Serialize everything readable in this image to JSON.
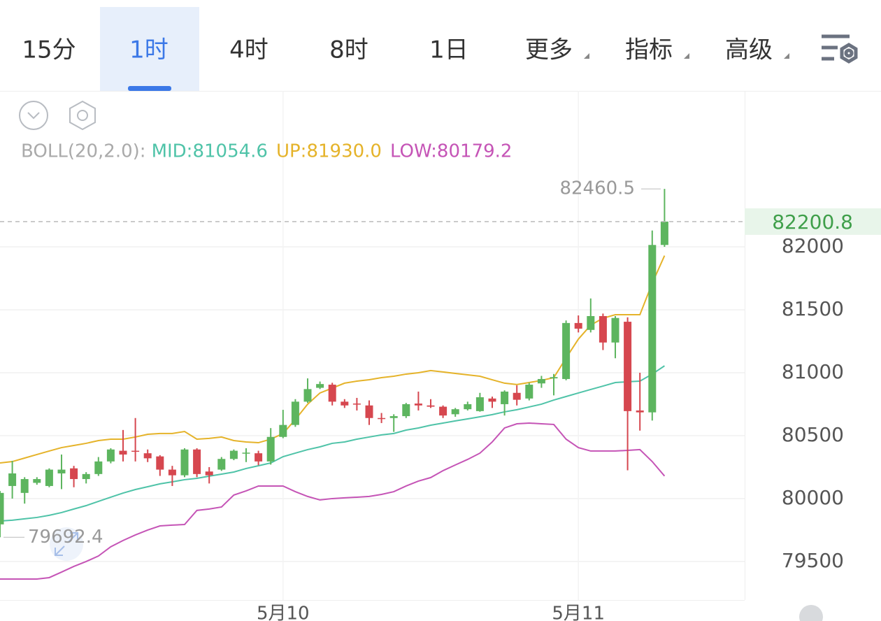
{
  "tabs": {
    "items": [
      {
        "label": "15分"
      },
      {
        "label": "1时"
      },
      {
        "label": "4时"
      },
      {
        "label": "8时"
      },
      {
        "label": "1日"
      },
      {
        "label": "更多",
        "menu": true
      },
      {
        "label": "指标",
        "menu": true
      },
      {
        "label": "高级",
        "menu": true
      }
    ],
    "active": 1
  },
  "chart_data": {
    "type": "candlestick",
    "indicator_label": "BOLL(20,2.0):",
    "categories": [
      null,
      null,
      null,
      null,
      null,
      null,
      null,
      null,
      null,
      null,
      null,
      null,
      null,
      null,
      null,
      null,
      null,
      null,
      null,
      null,
      null,
      null,
      null,
      "5月10",
      null,
      null,
      null,
      null,
      null,
      null,
      null,
      null,
      null,
      null,
      null,
      null,
      null,
      null,
      null,
      null,
      null,
      null,
      null,
      null,
      null,
      null,
      null,
      "5月11",
      null,
      null,
      null,
      null,
      null,
      null,
      null
    ],
    "up_color": "#5db55f",
    "down_color": "#d6474f",
    "open": [
      79795,
      80100,
      80045,
      80125,
      80100,
      80200,
      80240,
      80155,
      80195,
      80295,
      80380,
      80380,
      80360,
      80335,
      80230,
      80185,
      80390,
      80215,
      80230,
      80315,
      80360,
      80360,
      80295,
      80490,
      80585,
      80770,
      80880,
      80905,
      80770,
      80755,
      80740,
      80640,
      80640,
      80655,
      80755,
      80740,
      80730,
      80670,
      80710,
      80695,
      80795,
      80750,
      80840,
      80795,
      80915,
      80955,
      80950,
      81395,
      81340,
      81450,
      81240,
      81405,
      80700,
      80685,
      82015
    ],
    "high": [
      80060,
      80300,
      80170,
      80170,
      80240,
      80350,
      80260,
      80210,
      80330,
      80400,
      80545,
      80640,
      80390,
      80345,
      80260,
      80400,
      80400,
      80250,
      80330,
      80390,
      80400,
      80380,
      80560,
      80705,
      80790,
      80955,
      80930,
      80920,
      80790,
      80800,
      80780,
      80680,
      80670,
      80760,
      80850,
      80790,
      80740,
      80720,
      80770,
      80840,
      80810,
      80860,
      80900,
      80920,
      80975,
      80990,
      81415,
      81455,
      81590,
      81470,
      81450,
      81440,
      81000,
      82130,
      82460.5
    ],
    "low": [
      79692.4,
      80000,
      79960,
      80110,
      80090,
      80075,
      80090,
      80120,
      80180,
      80280,
      80295,
      80295,
      80290,
      80180,
      80100,
      80170,
      80170,
      80120,
      80220,
      80305,
      80290,
      80265,
      80270,
      80480,
      80570,
      80760,
      80870,
      80740,
      80720,
      80700,
      80585,
      80600,
      80530,
      80640,
      80700,
      80720,
      80640,
      80650,
      80700,
      80690,
      80720,
      80660,
      80740,
      80780,
      80880,
      80820,
      80940,
      81320,
      81320,
      81180,
      81115,
      80225,
      80540,
      80620,
      82000
    ],
    "close": [
      80045,
      80200,
      80155,
      80155,
      80230,
      80230,
      80155,
      80195,
      80295,
      80390,
      80350,
      80375,
      80320,
      80230,
      80185,
      80390,
      80195,
      80185,
      80315,
      80380,
      80365,
      80295,
      80490,
      80585,
      80770,
      80870,
      80910,
      80770,
      80740,
      80750,
      80640,
      80635,
      80655,
      80750,
      80740,
      80730,
      80660,
      80710,
      80750,
      80805,
      80770,
      80850,
      80785,
      80905,
      80950,
      80965,
      81395,
      81350,
      81450,
      81240,
      81435,
      80695,
      80685,
      82015,
      82200.8
    ],
    "lines": [
      {
        "legend": "MID:81054.6",
        "color": "#4fc3a8",
        "values": [
          79822,
          79828,
          79839,
          79850,
          79867,
          79889,
          79917,
          79944,
          79978,
          80011,
          80044,
          80072,
          80094,
          80117,
          80133,
          80150,
          80161,
          80178,
          80194,
          80211,
          80239,
          80261,
          80283,
          80333,
          80361,
          80389,
          80411,
          80439,
          80450,
          80472,
          80489,
          80506,
          80517,
          80544,
          80561,
          80583,
          80600,
          80617,
          80633,
          80650,
          80667,
          80689,
          80706,
          80728,
          80750,
          80783,
          80811,
          80839,
          80867,
          80894,
          80922,
          80928,
          80933,
          80989,
          81054.6
        ]
      },
      {
        "legend": "UP:81930.0",
        "color": "#e5b32a",
        "values": [
          80283,
          80294,
          80322,
          80350,
          80378,
          80405,
          80422,
          80439,
          80461,
          80472,
          80472,
          80489,
          80511,
          80517,
          80517,
          80533,
          80472,
          80478,
          80489,
          80461,
          80450,
          80444,
          80472,
          80517,
          80628,
          80750,
          80839,
          80878,
          80917,
          80933,
          80944,
          80961,
          80972,
          80989,
          81000,
          81017,
          81006,
          80994,
          80983,
          80972,
          80944,
          80917,
          80906,
          80922,
          80939,
          80961,
          81117,
          81267,
          81378,
          81433,
          81461,
          81461,
          81461,
          81711,
          81930
        ]
      },
      {
        "legend": "LOW:80179.2",
        "color": "#c554b6",
        "values": [
          79361,
          79361,
          79361,
          79361,
          79372,
          79416,
          79461,
          79500,
          79544,
          79617,
          79667,
          79711,
          79750,
          79783,
          79789,
          79794,
          79906,
          79917,
          79933,
          80028,
          80061,
          80100,
          80100,
          80100,
          80055,
          80017,
          79989,
          80000,
          80006,
          80011,
          80017,
          80033,
          80055,
          80100,
          80139,
          80167,
          80222,
          80267,
          80311,
          80361,
          80450,
          80561,
          80594,
          80600,
          80594,
          80589,
          80472,
          80405,
          80378,
          80378,
          80378,
          80383,
          80389,
          80294,
          80179.2
        ]
      }
    ],
    "ylim": [
      79194,
      83239
    ],
    "yticks": [
      79500,
      80000,
      80500,
      81000,
      81500,
      82000
    ],
    "grid": true,
    "high_marker": {
      "value": 82460.5,
      "label": "82460.5"
    },
    "low_marker": {
      "value": 79692.4,
      "label": "79692.4"
    },
    "last_price": {
      "value": 82200.8,
      "label": "82200.8",
      "color": "#3f9f4a"
    }
  }
}
